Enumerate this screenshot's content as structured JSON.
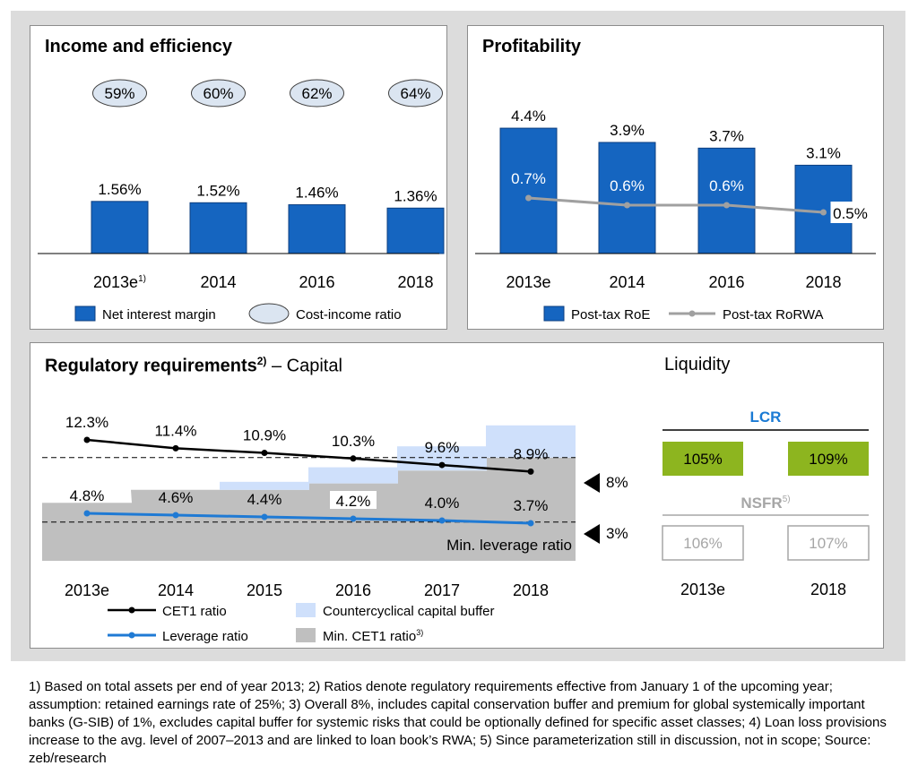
{
  "colors": {
    "bar_blue": "#1565c0",
    "oval_fill": "#dbe5f1",
    "cet1_line": "#000000",
    "leverage_line": "#1f7ad4",
    "countercyclical_fill": "#cfe0fb",
    "min_cet1_fill": "#bfbfbf",
    "liquidity_green": "#8db51f",
    "lcr_title": "#1a7ad4",
    "muted_gray": "#a6a6a6"
  },
  "income": {
    "title": "Income and efficiency",
    "legend_nim": "Net interest margin",
    "legend_cir": "Cost-income ratio"
  },
  "profitability": {
    "title": "Profitability",
    "legend_roe": "Post-tax RoE",
    "legend_rorwa": "Post-tax RoRWA"
  },
  "regulatory": {
    "title_bold": "Regulatory requirements",
    "title_sup": "2)",
    "title_rest": "– Capital",
    "min_leverage_label": "Min. leverage ratio",
    "threshold_8": "8%",
    "threshold_3": "3%",
    "legend_cet1": "CET1 ratio",
    "legend_leverage": "Leverage ratio",
    "legend_ccb": "Countercyclical capital buffer",
    "legend_min_cet1": "Min. CET1 ratio",
    "legend_min_cet1_sup": "3)"
  },
  "liquidity": {
    "title": "Liquidity",
    "lcr_label": "LCR",
    "lcr_values": [
      "105%",
      "109%"
    ],
    "nsfr_label": "NSFR",
    "nsfr_sup": "5)",
    "nsfr_values": [
      "106%",
      "107%"
    ],
    "years": [
      "2013e",
      "2018"
    ]
  },
  "footnote": "1) Based on total assets per end of year 2013; 2) Ratios denote regulatory requirements effective from January 1 of the upcoming year; assumption: retained earnings rate of 25%; 3) Overall 8%, includes capital conservation buffer and premium for global systemically important banks (G-SIB) of 1%, excludes capital buffer for systemic risks that could be optionally defined for specific asset classes; 4) Loan loss provisions increase to the avg. level of 2007–2013 and are linked to loan book’s RWA; 5) Since parameterization still in discussion, not in scope; Source: zeb/research",
  "chart_data": [
    {
      "type": "bar",
      "title": "Income and efficiency",
      "categories": [
        "2013e",
        "2014",
        "2016",
        "2018"
      ],
      "category_sup": [
        "1)",
        "",
        "",
        ""
      ],
      "series": [
        {
          "name": "Net interest margin",
          "values": [
            1.56,
            1.52,
            1.46,
            1.36
          ],
          "labels": [
            "1.56%",
            "1.52%",
            "1.46%",
            "1.36%"
          ]
        },
        {
          "name": "Cost-income ratio",
          "values": [
            59,
            60,
            62,
            64
          ],
          "labels": [
            "59%",
            "60%",
            "62%",
            "64%"
          ]
        }
      ]
    },
    {
      "type": "bar",
      "title": "Profitability",
      "categories": [
        "2013e",
        "2014",
        "2016",
        "2018"
      ],
      "series": [
        {
          "name": "Post-tax RoE",
          "values": [
            4.4,
            3.9,
            3.7,
            3.1
          ],
          "labels": [
            "4.4%",
            "3.9%",
            "3.7%",
            "3.1%"
          ]
        },
        {
          "name": "Post-tax RoRWA",
          "values": [
            0.7,
            0.6,
            0.6,
            0.5
          ],
          "labels": [
            "0.7%",
            "0.6%",
            "0.6%",
            "0.5%"
          ]
        }
      ]
    },
    {
      "type": "line",
      "title": "Regulatory requirements – Capital",
      "categories": [
        "2013e",
        "2014",
        "2015",
        "2016",
        "2017",
        "2018"
      ],
      "series": [
        {
          "name": "CET1 ratio",
          "values": [
            12.3,
            11.4,
            10.9,
            10.3,
            9.6,
            8.9
          ],
          "labels": [
            "12.3%",
            "11.4%",
            "10.9%",
            "10.3%",
            "9.6%",
            "8.9%"
          ]
        },
        {
          "name": "Leverage ratio",
          "values": [
            4.8,
            4.6,
            4.4,
            4.2,
            4.0,
            3.7
          ],
          "labels": [
            "4.8%",
            "4.6%",
            "4.4%",
            "4.2%",
            "4.0%",
            "3.7%"
          ]
        },
        {
          "name": "Min. CET1 ratio",
          "values": [
            4.5,
            5.5,
            5.5,
            6.0,
            7.0,
            8.0
          ]
        },
        {
          "name": "Countercyclical capital buffer",
          "values": [
            0,
            0,
            0.625,
            1.25,
            1.875,
            2.5
          ]
        }
      ],
      "reference_lines": [
        8,
        3
      ]
    }
  ]
}
